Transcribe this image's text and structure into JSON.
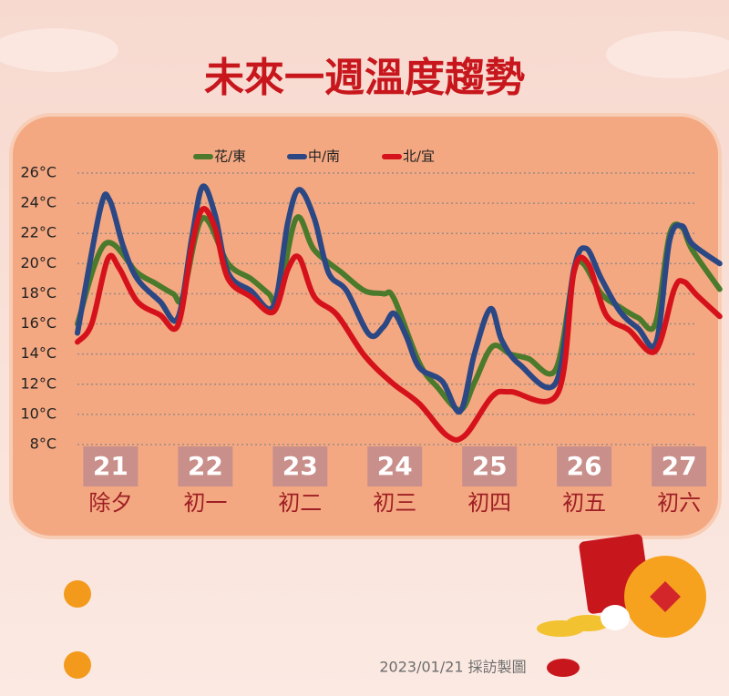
{
  "chart_data": {
    "type": "line",
    "title": "未來一週溫度趨勢",
    "series": [
      {
        "name": "花/東",
        "color": "#4b7a2c",
        "x": [
          20.65,
          20.94,
          21.28,
          21.47,
          21.66,
          21.76,
          21.97,
          22.24,
          22.48,
          22.67,
          22.77,
          22.96,
          23.15,
          23.44,
          23.68,
          23.88,
          23.99,
          24.26,
          24.45,
          24.69,
          24.84,
          25.03,
          25.22,
          25.41,
          25.7,
          25.89,
          25.99,
          26.18,
          26.38,
          26.57,
          26.75,
          26.9,
          27.03,
          27.14,
          27.43
        ],
        "values": [
          16,
          21.3,
          19.4,
          18.7,
          18,
          17.8,
          23,
          20,
          19,
          18,
          17.6,
          23,
          20.9,
          19.4,
          18.2,
          18,
          17.7,
          13.4,
          11.8,
          10.3,
          12.1,
          14.5,
          14,
          13.7,
          13,
          19.4,
          20,
          18,
          17.1,
          16.4,
          16,
          21.9,
          22.4,
          20.9,
          18.3
        ]
      },
      {
        "name": "中/南",
        "color": "#2b4885",
        "x": [
          20.65,
          20.89,
          20.99,
          21.13,
          21.28,
          21.52,
          21.71,
          21.86,
          21.97,
          22.1,
          22.24,
          22.48,
          22.72,
          22.87,
          22.99,
          23.15,
          23.3,
          23.49,
          23.73,
          23.88,
          23.99,
          24.12,
          24.26,
          24.5,
          24.69,
          24.84,
          25.01,
          25.13,
          25.32,
          25.7,
          25.89,
          26.02,
          26.18,
          26.38,
          26.57,
          26.76,
          26.9,
          27.03,
          27.14,
          27.43
        ],
        "values": [
          15.4,
          23.6,
          24.2,
          21.2,
          19,
          17.5,
          16.4,
          21.8,
          25.1,
          23.3,
          19.4,
          18.2,
          17.2,
          22.7,
          24.9,
          23,
          19.4,
          18.2,
          15.3,
          15.8,
          16.7,
          15.2,
          13.1,
          12.2,
          10.2,
          14,
          17,
          14.9,
          13.3,
          12.1,
          19.6,
          21,
          19,
          16.8,
          15.7,
          14.8,
          21.5,
          22.5,
          21.3,
          20
        ]
      },
      {
        "name": "北/宜",
        "color": "#d5121b",
        "x": [
          20.65,
          20.8,
          20.97,
          21.09,
          21.28,
          21.52,
          21.71,
          21.86,
          21.97,
          22.1,
          22.24,
          22.48,
          22.72,
          22.87,
          22.99,
          23.15,
          23.39,
          23.68,
          23.97,
          24.26,
          24.55,
          24.74,
          25.03,
          25.22,
          25.72,
          25.89,
          26.04,
          26.23,
          26.47,
          26.75,
          26.95,
          27.05,
          27.19,
          27.43
        ],
        "values": [
          14.8,
          16,
          20.3,
          19.7,
          17.5,
          16.6,
          15.9,
          21.2,
          23.6,
          22.4,
          19,
          17.8,
          16.8,
          19.6,
          20.4,
          17.8,
          16.6,
          13.9,
          12.1,
          10.7,
          8.6,
          8.6,
          11.2,
          11.5,
          11.4,
          19.4,
          20,
          16.6,
          15.6,
          14.2,
          18.3,
          18.8,
          17.9,
          16.5
        ]
      }
    ],
    "xlim": [
      20.65,
      27.48
    ],
    "xticks": [
      {
        "value": 21,
        "label": "21"
      },
      {
        "value": 22,
        "label": "22"
      },
      {
        "value": 23,
        "label": "23"
      },
      {
        "value": 24,
        "label": "24"
      },
      {
        "value": 25,
        "label": "25"
      },
      {
        "value": 26,
        "label": "26"
      },
      {
        "value": 27,
        "label": "27"
      }
    ],
    "lunar_labels": [
      "除夕",
      "初一",
      "初二",
      "初三",
      "初四",
      "初五",
      "初六"
    ],
    "ylim": [
      8,
      26
    ],
    "yticks": [
      {
        "value": 8,
        "label": "8°C"
      },
      {
        "value": 10,
        "label": "10°C"
      },
      {
        "value": 12,
        "label": "12°C"
      },
      {
        "value": 14,
        "label": "14°C"
      },
      {
        "value": 16,
        "label": "16°C"
      },
      {
        "value": 18,
        "label": "18°C"
      },
      {
        "value": 20,
        "label": "20°C"
      },
      {
        "value": 22,
        "label": "22°C"
      },
      {
        "value": 24,
        "label": "24°C"
      },
      {
        "value": 26,
        "label": "26°C"
      }
    ],
    "grid": true,
    "credit": "2023/01/21 採訪製圖"
  }
}
